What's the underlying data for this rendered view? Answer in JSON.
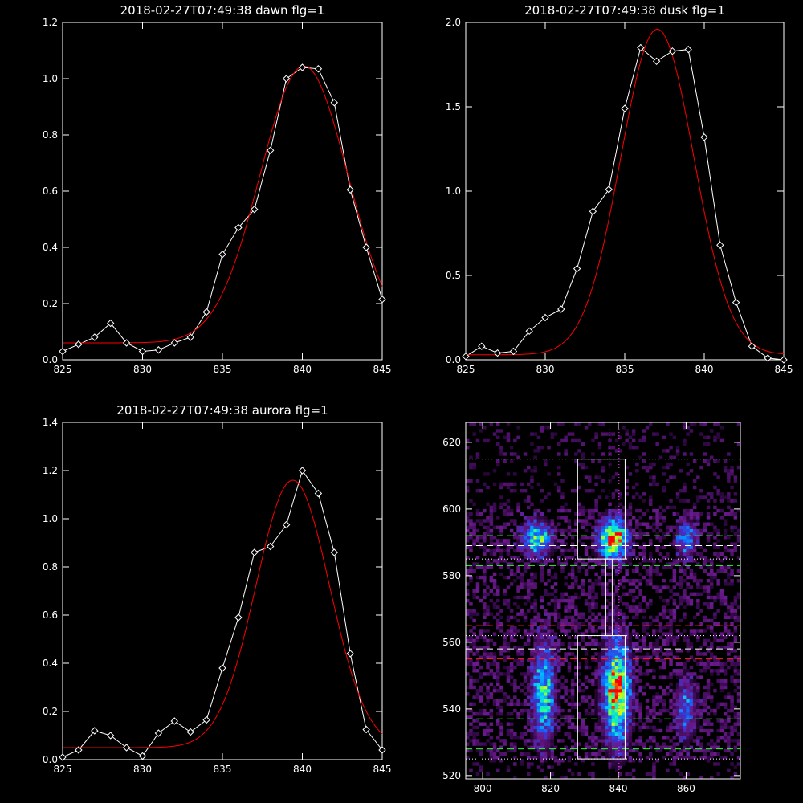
{
  "chart_data": [
    {
      "id": "dawn",
      "type": "line",
      "title": "2018-02-27T07:49:38 dawn flg=1",
      "xlim": [
        825,
        845
      ],
      "ylim": [
        0,
        1.2
      ],
      "xticks": [
        825,
        830,
        835,
        840,
        845
      ],
      "yticks": [
        0.0,
        0.2,
        0.4,
        0.6,
        0.8,
        1.0,
        1.2
      ],
      "ytick_labels": [
        "0.0",
        "0.2",
        "0.4",
        "0.6",
        "0.8",
        "1.0",
        "1.2"
      ],
      "series": [
        {
          "role": "data",
          "color": "#ffffff",
          "marker": "diamond",
          "x": [
            825,
            826,
            827,
            828,
            829,
            830,
            831,
            832,
            833,
            834,
            835,
            836,
            837,
            838,
            839,
            840,
            841,
            842,
            843,
            844,
            845
          ],
          "y": [
            0.03,
            0.055,
            0.08,
            0.13,
            0.06,
            0.03,
            0.035,
            0.06,
            0.08,
            0.17,
            0.375,
            0.47,
            0.535,
            0.745,
            1.0,
            1.04,
            1.035,
            0.915,
            0.605,
            0.4,
            0.215
          ]
        },
        {
          "role": "fit",
          "color": "#ff0000",
          "model": "gaussian",
          "amplitude": 0.985,
          "center": 840.1,
          "sigma": 2.75,
          "offset": 0.06
        }
      ]
    },
    {
      "id": "dusk",
      "type": "line",
      "title": "2018-02-27T07:49:38 dusk flg=1",
      "xlim": [
        825,
        845
      ],
      "ylim": [
        0,
        2.0
      ],
      "xticks": [
        825,
        830,
        835,
        840,
        845
      ],
      "yticks": [
        0.0,
        0.5,
        1.0,
        1.5,
        2.0
      ],
      "ytick_labels": [
        "0.0",
        "0.5",
        "1.0",
        "1.5",
        "2.0"
      ],
      "series": [
        {
          "role": "data",
          "color": "#ffffff",
          "marker": "diamond",
          "x": [
            825,
            826,
            827,
            828,
            829,
            830,
            831,
            832,
            833,
            834,
            835,
            836,
            837,
            838,
            839,
            840,
            841,
            842,
            843,
            844,
            845
          ],
          "y": [
            0.02,
            0.08,
            0.04,
            0.05,
            0.17,
            0.25,
            0.3,
            0.54,
            0.88,
            1.01,
            1.49,
            1.85,
            1.77,
            1.83,
            1.84,
            1.32,
            0.68,
            0.34,
            0.08,
            0.01,
            0.0
          ]
        },
        {
          "role": "fit",
          "color": "#ff0000",
          "model": "gaussian",
          "amplitude": 1.93,
          "center": 837.05,
          "sigma": 2.3,
          "offset": 0.03
        }
      ]
    },
    {
      "id": "aurora",
      "type": "line",
      "title": "2018-02-27T07:49:38 aurora flg=1",
      "xlim": [
        825,
        845
      ],
      "ylim": [
        0,
        1.4
      ],
      "xticks": [
        825,
        830,
        835,
        840,
        845
      ],
      "yticks": [
        0.0,
        0.2,
        0.4,
        0.6,
        0.8,
        1.0,
        1.2,
        1.4
      ],
      "ytick_labels": [
        "0.0",
        "0.2",
        "0.4",
        "0.6",
        "0.8",
        "1.0",
        "1.2",
        "1.4"
      ],
      "series": [
        {
          "role": "data",
          "color": "#ffffff",
          "marker": "diamond",
          "x": [
            825,
            826,
            827,
            828,
            829,
            830,
            831,
            832,
            833,
            834,
            835,
            836,
            837,
            838,
            839,
            840,
            841,
            842,
            843,
            844,
            845
          ],
          "y": [
            0.01,
            0.04,
            0.12,
            0.1,
            0.05,
            0.015,
            0.11,
            0.16,
            0.115,
            0.165,
            0.38,
            0.59,
            0.86,
            0.885,
            0.975,
            1.2,
            1.105,
            0.86,
            0.44,
            0.125,
            0.04
          ]
        },
        {
          "role": "fit",
          "color": "#ff0000",
          "model": "gaussian",
          "amplitude": 1.11,
          "center": 839.4,
          "sigma": 2.3,
          "offset": 0.05
        }
      ]
    },
    {
      "id": "image",
      "type": "heatmap",
      "xlim": [
        795,
        876
      ],
      "ylim": [
        519,
        626
      ],
      "xticks": [
        800,
        820,
        840,
        860
      ],
      "yticks": [
        520,
        540,
        560,
        580,
        600,
        620
      ],
      "colormap": [
        "#000000",
        "#3a0a52",
        "#6a1a8a",
        "#4030c8",
        "#1070ff",
        "#00d0ff",
        "#20ff90",
        "#e0ff00",
        "#ff0000"
      ],
      "blobs": [
        {
          "x": 816,
          "y": 591,
          "sx": 3.0,
          "sy": 3.5,
          "peak": 0.62
        },
        {
          "x": 838.5,
          "y": 591,
          "sx": 2.8,
          "sy": 4.0,
          "peak": 0.98
        },
        {
          "x": 860,
          "y": 591,
          "sx": 2.0,
          "sy": 3.5,
          "peak": 0.45
        },
        {
          "x": 818,
          "y": 545,
          "sx": 2.2,
          "sy": 10.0,
          "peak": 0.62
        },
        {
          "x": 839.5,
          "y": 545,
          "sx": 2.6,
          "sy": 10.0,
          "peak": 0.96
        },
        {
          "x": 860,
          "y": 540,
          "sx": 2.2,
          "sy": 6.0,
          "peak": 0.4
        }
      ],
      "boxes": [
        {
          "x0": 828,
          "x1": 842,
          "y0": 585,
          "y1": 615
        },
        {
          "x0": 828,
          "x1": 842,
          "y0": 525,
          "y1": 562
        }
      ],
      "connector": {
        "x0": 836.3,
        "x1": 838.2,
        "y0": 562,
        "y1": 585
      },
      "vlines": [
        {
          "x": 837.3,
          "color": "#ffffff",
          "style": "dotted"
        },
        {
          "x": 840.2,
          "color": "#ff40ff",
          "style": "dotted"
        }
      ],
      "hlines": [
        {
          "y": 615,
          "color": "#ffffff",
          "style": "dotted"
        },
        {
          "y": 592,
          "color": "#20ff20",
          "style": "dashed"
        },
        {
          "y": 589,
          "color": "#ffffff",
          "style": "dashed"
        },
        {
          "y": 585,
          "color": "#ffffff",
          "style": "dotted"
        },
        {
          "y": 583,
          "color": "#20ff20",
          "style": "dashed"
        },
        {
          "y": 565,
          "color": "#ff2020",
          "style": "dashed"
        },
        {
          "y": 562,
          "color": "#ffffff",
          "style": "dotted"
        },
        {
          "y": 558,
          "color": "#ffffff",
          "style": "dashed"
        },
        {
          "y": 555,
          "color": "#ff2020",
          "style": "dashed"
        },
        {
          "y": 537,
          "color": "#20ff20",
          "style": "dashed"
        },
        {
          "y": 528,
          "color": "#20ff20",
          "style": "dashed"
        },
        {
          "y": 525,
          "color": "#ffffff",
          "style": "dotted"
        }
      ]
    }
  ]
}
